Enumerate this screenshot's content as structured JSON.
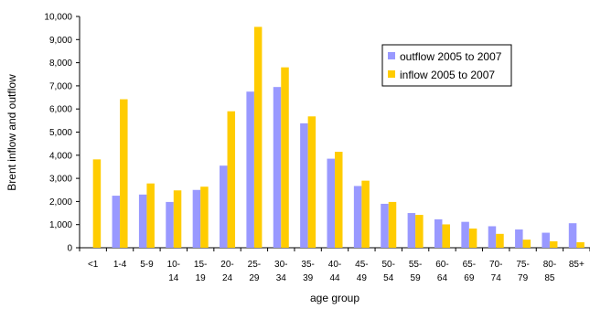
{
  "chart_data": {
    "type": "bar",
    "title": "",
    "xlabel": "age group",
    "ylabel": "Brent inflow and outflow",
    "ylim": [
      0,
      10000
    ],
    "yticks": [
      "0",
      "1,000",
      "2,000",
      "3,000",
      "4,000",
      "5,000",
      "6,000",
      "7,000",
      "8,000",
      "9,000",
      "10,000"
    ],
    "ytick_values": [
      0,
      1000,
      2000,
      3000,
      4000,
      5000,
      6000,
      7000,
      8000,
      9000,
      10000
    ],
    "categories": [
      [
        "<1"
      ],
      [
        "1-4"
      ],
      [
        "5-9"
      ],
      [
        "10-",
        "14"
      ],
      [
        "15-",
        "19"
      ],
      [
        "20-",
        "24"
      ],
      [
        "25-",
        "29"
      ],
      [
        "30-",
        "34"
      ],
      [
        "35-",
        "39"
      ],
      [
        "40-",
        "44"
      ],
      [
        "45-",
        "49"
      ],
      [
        "50-",
        "54"
      ],
      [
        "55-",
        "59"
      ],
      [
        "60-",
        "64"
      ],
      [
        "65-",
        "69"
      ],
      [
        "70-",
        "74"
      ],
      [
        "75-",
        "79"
      ],
      [
        "80-",
        "85"
      ],
      [
        "85+"
      ]
    ],
    "series": [
      {
        "name": "outflow 2005 to 2007",
        "color": "#9999ff",
        "values": [
          0,
          2250,
          2300,
          1980,
          2500,
          3550,
          6750,
          6950,
          5380,
          3850,
          2670,
          1900,
          1500,
          1230,
          1120,
          930,
          790,
          650,
          1060
        ]
      },
      {
        "name": "inflow 2005 to 2007",
        "color": "#ffcc00",
        "values": [
          3820,
          6420,
          2780,
          2480,
          2640,
          5900,
          9550,
          7800,
          5680,
          4150,
          2900,
          1980,
          1420,
          1010,
          830,
          600,
          350,
          280,
          240
        ]
      }
    ],
    "legend_position": "top-right",
    "grid": false
  }
}
